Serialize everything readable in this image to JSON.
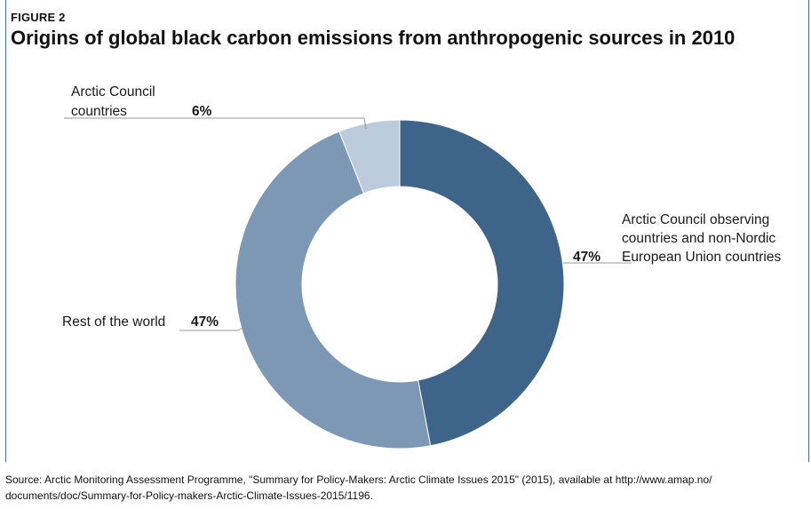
{
  "figure_label": "FIGURE 2",
  "chart_data": {
    "type": "pie",
    "title": "Origins of global black carbon emissions from anthropogenic sources in 2010",
    "donut": true,
    "slices": [
      {
        "name_lines": [
          "Arctic Council observing",
          "countries and non-Nordic",
          "European Union countries"
        ],
        "value": 47,
        "value_label": "47%",
        "color": "#3e6489"
      },
      {
        "name_lines": [
          "Rest of the world"
        ],
        "value": 47,
        "value_label": "47%",
        "color": "#7d98b5"
      },
      {
        "name_lines": [
          "Arctic Council",
          "countries"
        ],
        "value": 6,
        "value_label": "6%",
        "color": "#bccbdb"
      }
    ]
  },
  "source": {
    "line1": "Source: Arctic Monitoring Assessment Programme, \"Summary for Policy-Makers: Arctic Climate Issues 2015\" (2015), available at http://www.amap.no/",
    "line2": "documents/doc/Summary-for-Policy-makers-Arctic-Climate-Issues-2015/1196."
  }
}
